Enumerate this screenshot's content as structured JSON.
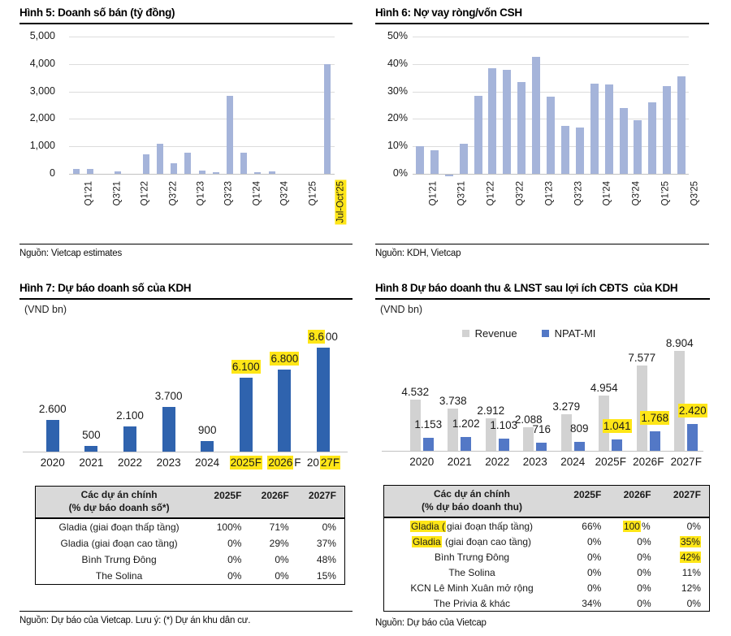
{
  "colors": {
    "light_blue": "#a5b4da",
    "dark_blue": "#2f63ae",
    "mid_blue": "#5378c6",
    "gray_bar": "#d2d2d2",
    "grid": "#dcdcdc",
    "highlight": "#ffe617",
    "table_header_bg": "#d9d9d9"
  },
  "figures": {
    "fig5": {
      "title": "Hình 5: Doanh số bán (tỷ đồng)",
      "source": "Nguồn: Vietcap estimates"
    },
    "fig6": {
      "title": "Hình 6: Nợ vay ròng/vốn CSH",
      "source": "Nguồn: KDH, Vietcap"
    },
    "fig7": {
      "title": "Hình 7: Dự báo doanh số của KDH",
      "unit": "(VND bn)",
      "source": "Nguồn: Dự báo của Vietcap. Lưu ý: (*) Dự án khu dân cư."
    },
    "fig8": {
      "title": "Hình 8 Dự báo doanh thu & LNST sau lợi ích CĐTS  của KDH",
      "unit": "(VND bn)",
      "source": "Nguồn: Dự báo của Vietcap"
    }
  },
  "chart_data": [
    {
      "id": "fig5",
      "type": "bar",
      "title": "Hình 5: Doanh số bán (tỷ đồng)",
      "categories": [
        "Q1'21",
        "Q2'21",
        "Q3'21",
        "Q4'21",
        "Q1'22",
        "Q2'22",
        "Q3'22",
        "Q4'22",
        "Q1'23",
        "Q2'23",
        "Q3'23",
        "Q4'23",
        "Q1'24",
        "Q2'24",
        "Q3'24",
        "Q4'24",
        "Q1'25",
        "Q2'25",
        "Jul-Oct'25"
      ],
      "values": [
        180,
        180,
        0,
        90,
        0,
        700,
        1100,
        380,
        780,
        130,
        50,
        2850,
        760,
        60,
        90,
        0,
        0,
        0,
        4000
      ],
      "tick_labels": [
        "Q1'21",
        "Q3'21",
        "Q1'22",
        "Q3'22",
        "Q1'23",
        "Q3'23",
        "Q1'24",
        "Q3'24",
        "Q1'25",
        "Jul-Oct'25"
      ],
      "highlight_category": "Jul-Oct'25",
      "ylim": [
        0,
        5000
      ],
      "ytick_labels": [
        "5,000",
        "4,000",
        "3,000",
        "2,000",
        "1,000",
        "0"
      ],
      "xlabel": "",
      "ylabel": "",
      "grid": true,
      "legend": "none"
    },
    {
      "id": "fig6",
      "type": "bar",
      "title": "Hình 6: Nợ vay ròng/vốn CSH",
      "categories": [
        "Q1'21",
        "Q2'21",
        "Q3'21",
        "Q4'21",
        "Q1'22",
        "Q2'22",
        "Q3'22",
        "Q4'22",
        "Q1'23",
        "Q2'23",
        "Q3'23",
        "Q4'23",
        "Q1'24",
        "Q2'24",
        "Q3'24",
        "Q4'24",
        "Q1'25",
        "Q2'25",
        "Q3'25"
      ],
      "values": [
        10,
        8.5,
        -0.5,
        11,
        28.5,
        38.5,
        38,
        33.5,
        42.5,
        28,
        17.5,
        17,
        33,
        32.5,
        24,
        19.5,
        26,
        32,
        35.5
      ],
      "tick_labels": [
        "Q1'21",
        "Q3'21",
        "Q1'22",
        "Q3'22",
        "Q1'23",
        "Q3'23",
        "Q1'24",
        "Q3'24",
        "Q1'25",
        "Q3'25"
      ],
      "highlight_category": "",
      "ylim": [
        0,
        50
      ],
      "ytick_labels": [
        "50%",
        "40%",
        "30%",
        "20%",
        "10%",
        "0%"
      ],
      "xlabel": "",
      "ylabel": "",
      "grid": true,
      "legend": "none"
    },
    {
      "id": "fig7",
      "type": "bar",
      "title": "Hình 7: Dự báo doanh số của KDH",
      "ylabel_unit": "(VND bn)",
      "categories": [
        "2020",
        "2021",
        "2022",
        "2023",
        "2024",
        "2025F",
        "2026F",
        "2027F"
      ],
      "values": [
        2600,
        500,
        2100,
        3700,
        900,
        6100,
        6800,
        8600
      ],
      "value_labels": [
        "2.600",
        "500",
        "2.100",
        "3.700",
        "900",
        [
          {
            "t": "6.100",
            "hl": true
          }
        ],
        [
          {
            "t": "6.800",
            "hl": true
          }
        ],
        [
          {
            "t": "8.6",
            "hl": true
          },
          {
            "t": "00",
            "hl": false
          }
        ]
      ],
      "category_labels": [
        "2020",
        "2021",
        "2022",
        "2023",
        "2024",
        [
          {
            "t": "2025F",
            "hl": true
          }
        ],
        [
          {
            "t": "2026",
            "hl": true
          },
          {
            "t": "F",
            "hl": false
          }
        ],
        [
          {
            "t": "20",
            "hl": false
          },
          {
            "t": "27F",
            "hl": true
          }
        ]
      ],
      "ylim": [
        0,
        8600
      ],
      "grid": false,
      "legend": "none"
    },
    {
      "id": "fig8",
      "type": "bar",
      "title": "Hình 8 Dự báo doanh thu & LNST sau lợi ích CĐTS  của KDH",
      "ylabel_unit": "(VND bn)",
      "categories": [
        "2020",
        "2021",
        "2022",
        "2023",
        "2024",
        "2025F",
        "2026F",
        "2027F"
      ],
      "series": [
        {
          "name": "Revenue",
          "values": [
            4532,
            3738,
            2912,
            2088,
            3279,
            4954,
            7577,
            8904
          ],
          "labels": [
            "4.532",
            "3.738",
            "2.912",
            "2.088",
            "3.279",
            "4.954",
            "7.577",
            "8.904"
          ]
        },
        {
          "name": "NPAT-MI",
          "values": [
            1153,
            1202,
            1103,
            716,
            809,
            1041,
            1768,
            2420
          ],
          "labels": [
            "1.153",
            "1.202",
            "1.103",
            "716",
            "809",
            [
              {
                "t": "1.041",
                "hl": true
              }
            ],
            [
              {
                "t": "1.768",
                "hl": true
              }
            ],
            [
              {
                "t": "2.420",
                "hl": true
              }
            ]
          ]
        }
      ],
      "ylim": [
        0,
        9000
      ],
      "grid": false,
      "legend": "top"
    }
  ],
  "tables": {
    "fig7": {
      "header": {
        "line1": "Các dự án chính",
        "line2": "(% dự báo doanh số*)",
        "years": [
          "2025F",
          "2026F",
          "2027F"
        ]
      },
      "rows": [
        {
          "name": "Gladia (giai đoạn thấp tầng)",
          "values": [
            "100%",
            "71%",
            "0%"
          ]
        },
        {
          "name": "Gladia (giai đoạn cao tầng)",
          "values": [
            "0%",
            "29%",
            "37%"
          ]
        },
        {
          "name": "Bình Trưng Đông",
          "values": [
            "0%",
            "0%",
            "48%"
          ]
        },
        {
          "name": "The Solina",
          "values": [
            "0%",
            "0%",
            "15%"
          ]
        }
      ]
    },
    "fig8": {
      "header": {
        "line1": "Các dự án chính",
        "line2": "(% dự báo doanh thu)",
        "years": [
          "2025F",
          "2026F",
          "2027F"
        ]
      },
      "rows": [
        {
          "name": [
            {
              "t": "Gladia (",
              "hl": true
            },
            {
              "t": "giai đoạn thấp tầng)",
              "hl": false
            }
          ],
          "values": [
            "66%",
            [
              {
                "t": "100",
                "hl": true
              },
              {
                "t": "%",
                "hl": false
              }
            ],
            "0%"
          ]
        },
        {
          "name": [
            {
              "t": "Gladia",
              "hl": true
            },
            {
              "t": " (giai đoạn cao tầng)",
              "hl": false
            }
          ],
          "values": [
            "0%",
            "0%",
            [
              {
                "t": "35%",
                "hl": true
              }
            ]
          ]
        },
        {
          "name": "Bình Trưng Đông",
          "values": [
            "0%",
            "0%",
            [
              {
                "t": "42%",
                "hl": true
              }
            ]
          ]
        },
        {
          "name": "The Solina",
          "values": [
            "0%",
            "0%",
            "11%"
          ]
        },
        {
          "name": "KCN Lê Minh Xuân mở rộng",
          "values": [
            "0%",
            "0%",
            "12%"
          ]
        },
        {
          "name": "The Privia & khác",
          "values": [
            "34%",
            "0%",
            "0%"
          ]
        }
      ]
    }
  }
}
